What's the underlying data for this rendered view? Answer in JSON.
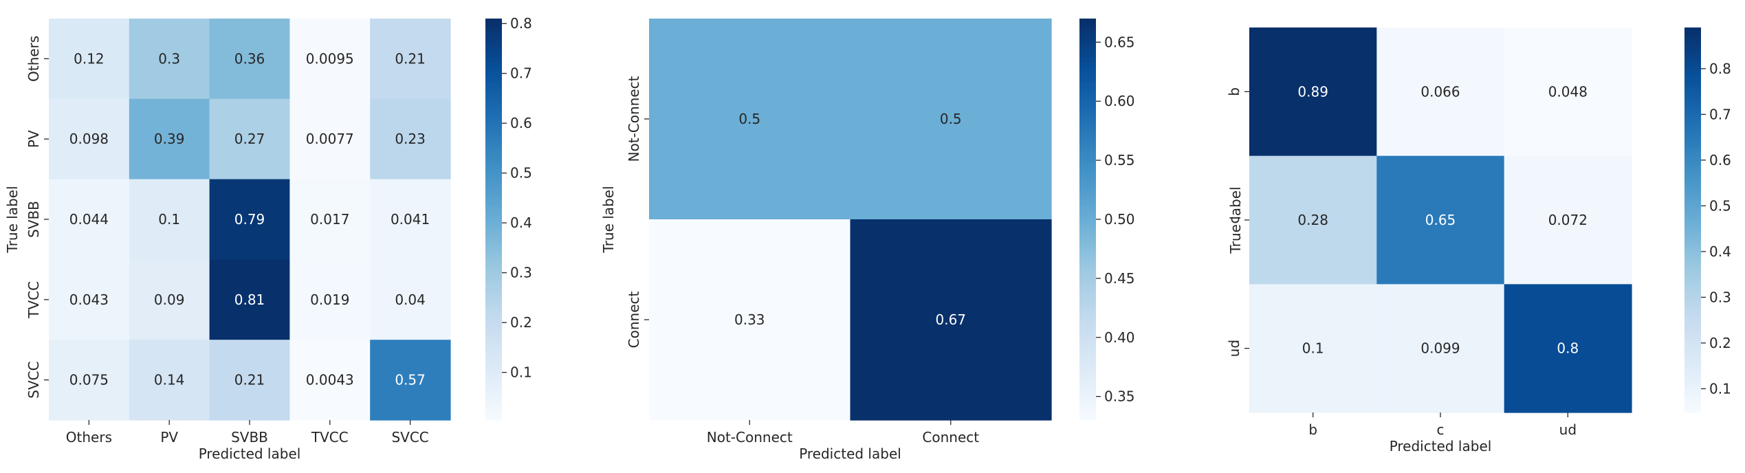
{
  "colormap": {
    "name": "Blues",
    "stops": [
      "#f7fbff",
      "#deebf7",
      "#c6dbef",
      "#9ecae1",
      "#6baed6",
      "#4292c6",
      "#2171b5",
      "#08519c",
      "#08306b"
    ],
    "dark_text_color": "#262626",
    "light_text_color": "#ffffff"
  },
  "chart_data": [
    {
      "type": "heatmap",
      "title": "",
      "xlabel": "Predicted label",
      "ylabel": "True label",
      "x_categories": [
        "Others",
        "PV",
        "SVBB",
        "TVCC",
        "SVCC"
      ],
      "y_categories": [
        "Others",
        "PV",
        "SVBB",
        "TVCC",
        "SVCC"
      ],
      "values": [
        [
          0.12,
          0.3,
          0.36,
          0.0095,
          0.21
        ],
        [
          0.098,
          0.39,
          0.27,
          0.0077,
          0.23
        ],
        [
          0.044,
          0.1,
          0.79,
          0.017,
          0.041
        ],
        [
          0.043,
          0.09,
          0.81,
          0.019,
          0.04
        ],
        [
          0.075,
          0.14,
          0.21,
          0.0043,
          0.57
        ]
      ],
      "cell_labels": [
        [
          "0.12",
          "0.3",
          "0.36",
          "0.0095",
          "0.21"
        ],
        [
          "0.098",
          "0.39",
          "0.27",
          "0.0077",
          "0.23"
        ],
        [
          "0.044",
          "0.1",
          "0.79",
          "0.017",
          "0.041"
        ],
        [
          "0.043",
          "0.09",
          "0.81",
          "0.019",
          "0.04"
        ],
        [
          "0.075",
          "0.14",
          "0.21",
          "0.0043",
          "0.57"
        ]
      ],
      "colorbar": {
        "vmin": 0.0043,
        "vmax": 0.81,
        "ticks": [
          0.1,
          0.2,
          0.3,
          0.4,
          0.5,
          0.6,
          0.7,
          0.8
        ],
        "tick_labels": [
          "0.1",
          "0.2",
          "0.3",
          "0.4",
          "0.5",
          "0.6",
          "0.7",
          "0.8"
        ]
      }
    },
    {
      "type": "heatmap",
      "title": "",
      "xlabel": "Predicted label",
      "ylabel": "True label",
      "x_categories": [
        "Not-Connect",
        "Connect"
      ],
      "y_categories": [
        "Not-Connect",
        "Connect"
      ],
      "values": [
        [
          0.5,
          0.5
        ],
        [
          0.33,
          0.67
        ]
      ],
      "cell_labels": [
        [
          "0.5",
          "0.5"
        ],
        [
          "0.33",
          "0.67"
        ]
      ],
      "colorbar": {
        "vmin": 0.33,
        "vmax": 0.67,
        "ticks": [
          0.35,
          0.4,
          0.45,
          0.5,
          0.55,
          0.6,
          0.65
        ],
        "tick_labels": [
          "0.35",
          "0.40",
          "0.45",
          "0.50",
          "0.55",
          "0.60",
          "0.65"
        ]
      }
    },
    {
      "type": "heatmap",
      "title": "",
      "xlabel": "Predicted label",
      "ylabel": "True label",
      "x_categories": [
        "b",
        "c",
        "ud"
      ],
      "y_categories": [
        "b",
        "c",
        "ud"
      ],
      "values": [
        [
          0.89,
          0.066,
          0.048
        ],
        [
          0.28,
          0.65,
          0.072
        ],
        [
          0.1,
          0.099,
          0.8
        ]
      ],
      "cell_labels": [
        [
          "0.89",
          "0.066",
          "0.048"
        ],
        [
          "0.28",
          "0.65",
          "0.072"
        ],
        [
          "0.1",
          "0.099",
          "0.8"
        ]
      ],
      "colorbar": {
        "vmin": 0.048,
        "vmax": 0.89,
        "ticks": [
          0.1,
          0.2,
          0.3,
          0.4,
          0.5,
          0.6,
          0.7,
          0.8
        ],
        "tick_labels": [
          "0.1",
          "0.2",
          "0.3",
          "0.4",
          "0.5",
          "0.6",
          "0.7",
          "0.8"
        ]
      }
    }
  ]
}
